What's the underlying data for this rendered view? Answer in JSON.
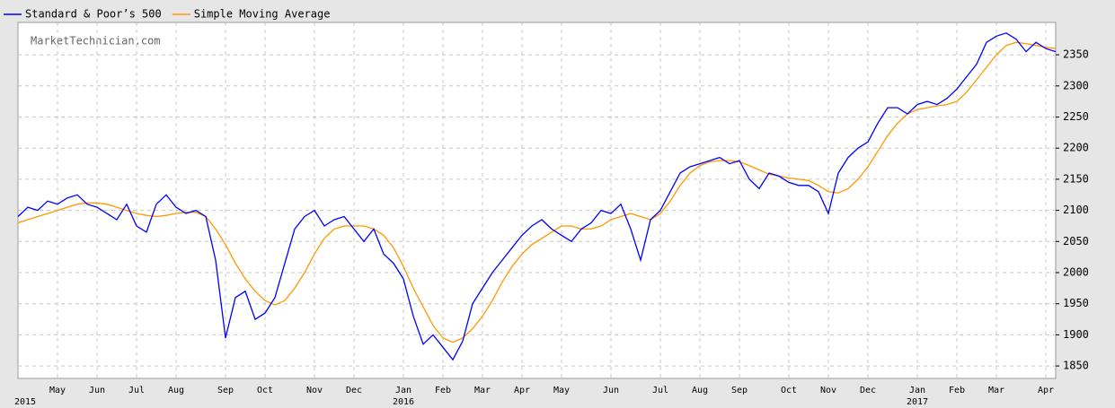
{
  "chart_data": {
    "type": "line",
    "watermark": "MarketTechnician.com",
    "categories": [
      null,
      null,
      null,
      null,
      "May",
      null,
      null,
      null,
      "Jun",
      null,
      null,
      null,
      "Jul",
      null,
      null,
      null,
      "Aug",
      null,
      null,
      null,
      null,
      "Sep",
      null,
      null,
      null,
      "Oct",
      null,
      null,
      null,
      null,
      "Nov",
      null,
      null,
      null,
      "Dec",
      null,
      null,
      null,
      null,
      "Jan",
      null,
      null,
      null,
      "Feb",
      null,
      null,
      null,
      "Mar",
      null,
      null,
      null,
      "Apr",
      null,
      null,
      null,
      "May",
      null,
      null,
      null,
      null,
      "Jun",
      null,
      null,
      null,
      null,
      "Jul",
      null,
      null,
      null,
      "Aug",
      null,
      null,
      null,
      "Sep",
      null,
      null,
      null,
      null,
      "Oct",
      null,
      null,
      null,
      "Nov",
      null,
      null,
      null,
      "Dec",
      null,
      null,
      null,
      null,
      "Jan",
      null,
      null,
      null,
      "Feb",
      null,
      null,
      null,
      "Mar",
      null,
      null,
      null,
      null,
      "Apr",
      null
    ],
    "years": [
      "2015",
      null,
      null,
      null,
      null,
      null,
      null,
      null,
      null,
      null,
      null,
      null,
      null,
      null,
      null,
      null,
      null,
      null,
      null,
      null,
      null,
      null,
      null,
      null,
      null,
      null,
      null,
      null,
      null,
      null,
      null,
      null,
      null,
      null,
      null,
      null,
      null,
      null,
      null,
      "2016",
      null,
      null,
      null,
      null,
      null,
      null,
      null,
      null,
      null,
      null,
      null,
      null,
      null,
      null,
      null,
      null,
      null,
      null,
      null,
      null,
      null,
      null,
      null,
      null,
      null,
      null,
      null,
      null,
      null,
      null,
      null,
      null,
      null,
      null,
      null,
      null,
      null,
      null,
      null,
      null,
      null,
      null,
      null,
      null,
      null,
      null,
      null,
      null,
      null,
      null,
      null,
      "2017",
      null,
      null,
      null,
      null,
      null,
      null,
      null,
      null,
      null,
      null,
      null,
      null,
      null,
      null
    ],
    "series": [
      {
        "name": "Standard & Poor’s 500",
        "color": "#0000ff",
        "values": [
          2090,
          2105,
          2100,
          2115,
          2110,
          2120,
          2125,
          2110,
          2105,
          2095,
          2085,
          2110,
          2075,
          2065,
          2110,
          2125,
          2105,
          2095,
          2100,
          2090,
          2020,
          1895,
          1960,
          1970,
          1925,
          1935,
          1960,
          2015,
          2070,
          2090,
          2100,
          2075,
          2085,
          2090,
          2070,
          2050,
          2070,
          2030,
          2015,
          1990,
          1930,
          1885,
          1900,
          1880,
          1860,
          1890,
          1950,
          1975,
          2000,
          2020,
          2040,
          2060,
          2075,
          2085,
          2070,
          2060,
          2050,
          2070,
          2080,
          2100,
          2095,
          2110,
          2070,
          2020,
          2085,
          2100,
          2130,
          2160,
          2170,
          2175,
          2180,
          2185,
          2175,
          2180,
          2150,
          2135,
          2160,
          2155,
          2145,
          2140,
          2140,
          2130,
          2095,
          2160,
          2185,
          2200,
          2210,
          2240,
          2265,
          2265,
          2255,
          2270,
          2275,
          2270,
          2280,
          2295,
          2315,
          2335,
          2370,
          2380,
          2385,
          2375,
          2355,
          2370,
          2360,
          2355
        ]
      },
      {
        "name": "Simple Moving Average",
        "color": "#ff9900",
        "values": [
          2080,
          2085,
          2090,
          2095,
          2100,
          2105,
          2110,
          2112,
          2112,
          2110,
          2105,
          2100,
          2095,
          2092,
          2090,
          2092,
          2095,
          2097,
          2097,
          2090,
          2070,
          2045,
          2015,
          1990,
          1970,
          1955,
          1948,
          1955,
          1975,
          2000,
          2030,
          2055,
          2070,
          2075,
          2075,
          2075,
          2070,
          2060,
          2040,
          2010,
          1975,
          1945,
          1915,
          1895,
          1888,
          1895,
          1910,
          1930,
          1955,
          1985,
          2010,
          2030,
          2045,
          2055,
          2065,
          2075,
          2075,
          2070,
          2070,
          2075,
          2085,
          2090,
          2095,
          2090,
          2085,
          2095,
          2115,
          2140,
          2160,
          2172,
          2178,
          2180,
          2180,
          2178,
          2172,
          2165,
          2158,
          2155,
          2152,
          2150,
          2148,
          2140,
          2130,
          2128,
          2135,
          2150,
          2170,
          2195,
          2220,
          2240,
          2255,
          2262,
          2265,
          2268,
          2270,
          2275,
          2290,
          2310,
          2330,
          2350,
          2365,
          2370,
          2368,
          2365,
          2362,
          2360
        ]
      }
    ],
    "ylim": [
      1830,
      2402
    ],
    "yticks": [
      1850,
      1900,
      1950,
      2000,
      2050,
      2100,
      2150,
      2200,
      2250,
      2300,
      2350
    ],
    "grid": true
  }
}
